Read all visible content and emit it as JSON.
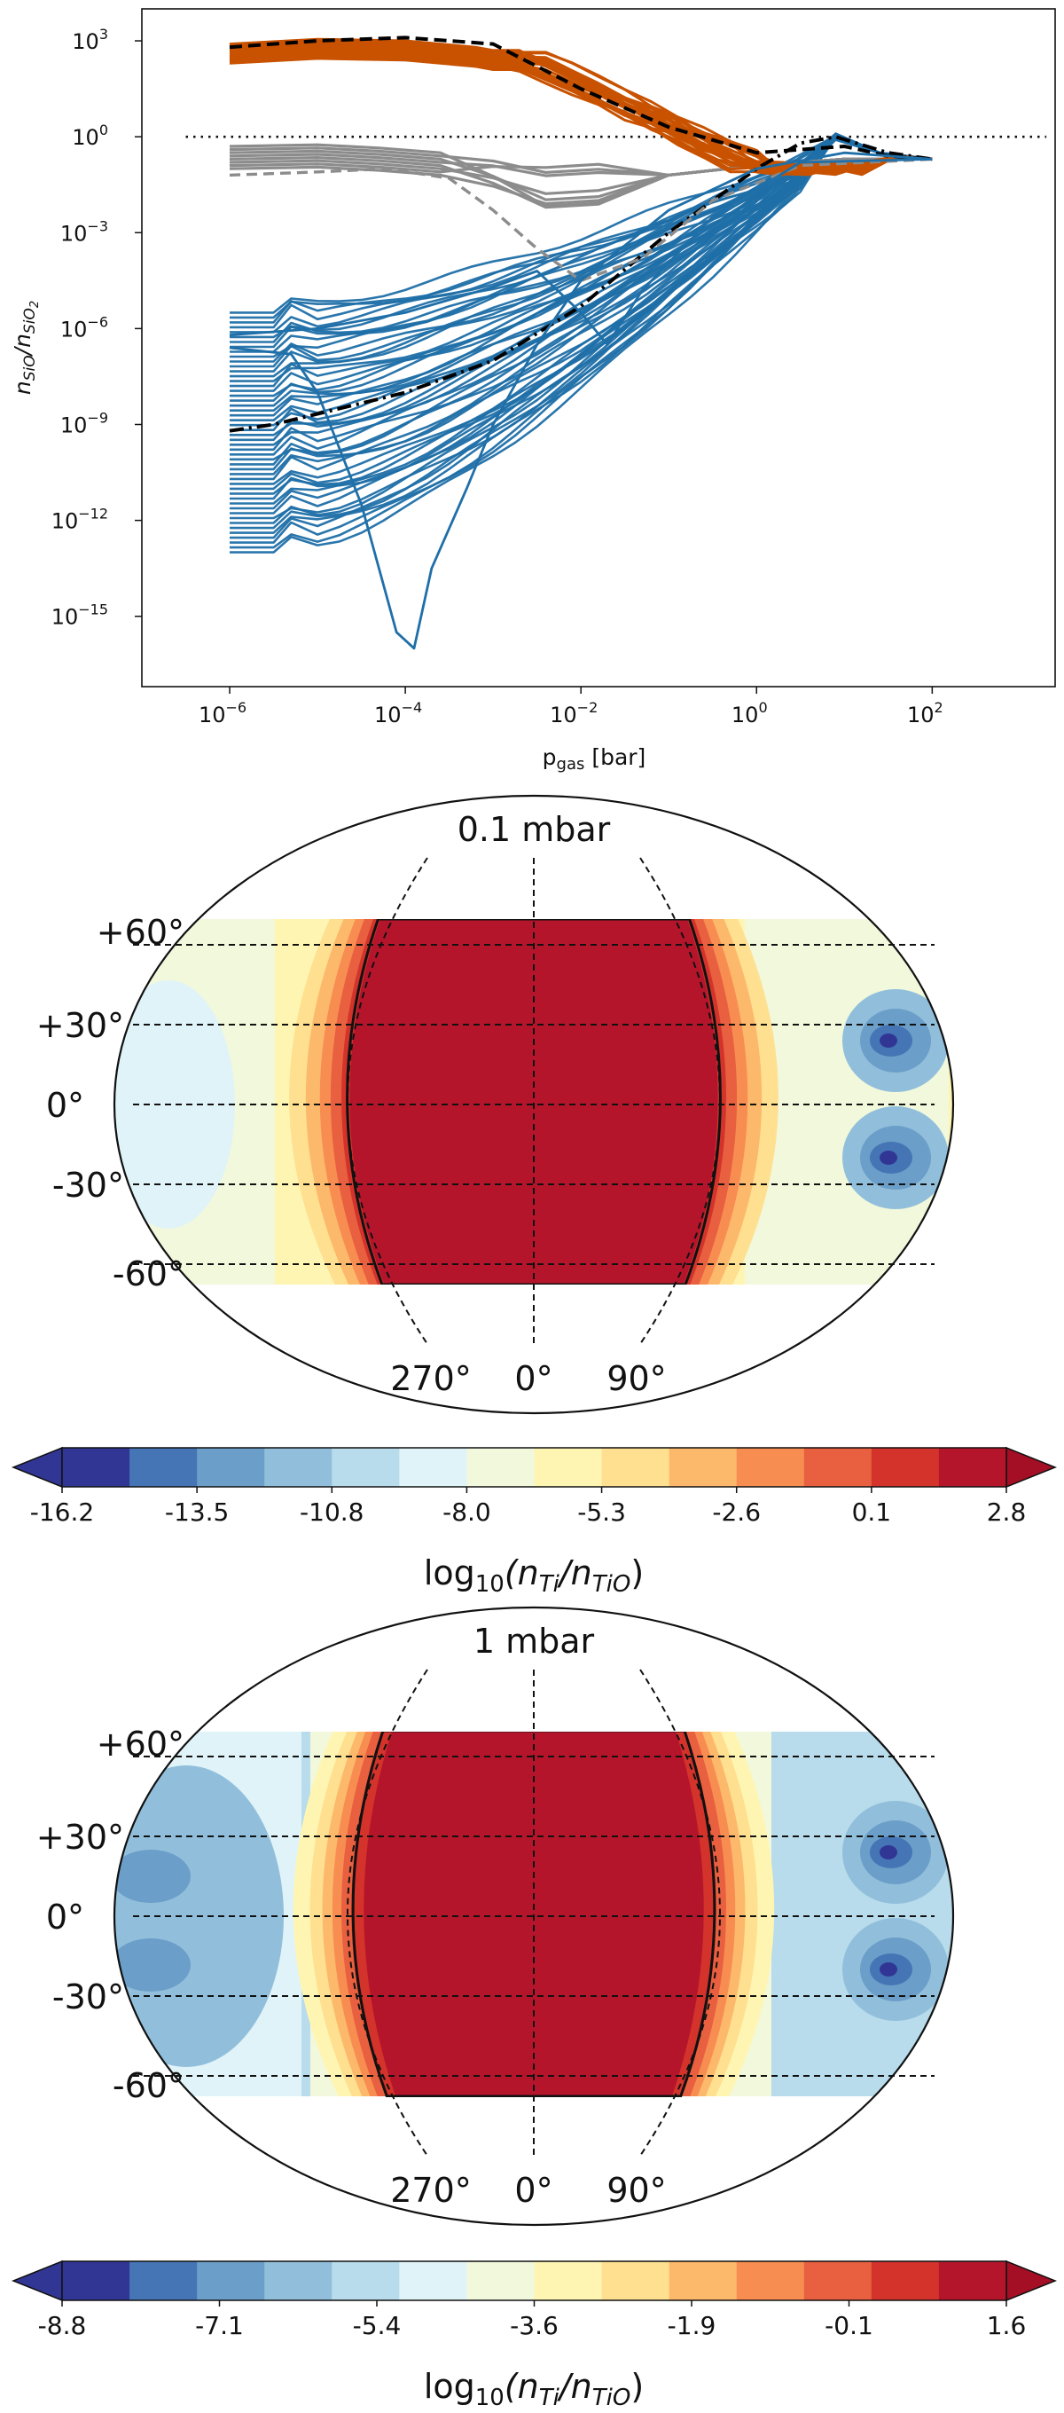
{
  "chart_data": [
    {
      "type": "line",
      "panel": "top",
      "xlabel_main": "p",
      "xlabel_sub": "gas",
      "xlabel_unit": " [bar]",
      "ylabel_n1": "n",
      "ylabel_s1": "SiO",
      "ylabel_slash": "/",
      "ylabel_n2": "n",
      "ylabel_s2": "SiO",
      "ylabel_s2b": "2",
      "xscale": "log",
      "yscale": "log",
      "xlim_exp": [
        -7,
        3.4
      ],
      "ylim_exp": [
        -17.2,
        4
      ],
      "x_ticks": [
        {
          "base": "10",
          "exp": "−6",
          "v": -6
        },
        {
          "base": "10",
          "exp": "−4",
          "v": -4
        },
        {
          "base": "10",
          "exp": "−2",
          "v": -2
        },
        {
          "base": "10",
          "exp": "0",
          "v": 0
        },
        {
          "base": "10",
          "exp": "2",
          "v": 2
        }
      ],
      "y_ticks": [
        {
          "base": "10",
          "exp": "3",
          "v": 3
        },
        {
          "base": "10",
          "exp": "0",
          "v": 0
        },
        {
          "base": "10",
          "exp": "−3",
          "v": -3
        },
        {
          "base": "10",
          "exp": "−6",
          "v": -6
        },
        {
          "base": "10",
          "exp": "−9",
          "v": -9
        },
        {
          "base": "10",
          "exp": "−12",
          "v": -12
        },
        {
          "base": "10",
          "exp": "−15",
          "v": -15
        }
      ],
      "reference_line": {
        "y_exp": 0,
        "style": "dotted"
      },
      "series_groups": [
        {
          "name": "orange",
          "color": "#c85200",
          "count": 22,
          "start_range": [
            2.3,
            2.9
          ],
          "end": -0.7
        },
        {
          "name": "gray",
          "color": "#8c8c8c",
          "count": 8,
          "start_range": [
            -1.0,
            -0.3
          ],
          "end": -0.7
        },
        {
          "name": "blue",
          "color": "#1f6fa8",
          "count": 50,
          "start_range": [
            -13.0,
            -5.5
          ],
          "end": -0.7
        }
      ],
      "highlighted_series": [
        {
          "name": "black-dashed",
          "color": "#000000",
          "points": [
            [
              -6,
              2.8
            ],
            [
              -5,
              3.0
            ],
            [
              -4,
              3.1
            ],
            [
              -3,
              2.9
            ],
            [
              -2,
              1.5
            ],
            [
              -1,
              0.3
            ],
            [
              0,
              -0.5
            ],
            [
              1,
              -0.3
            ],
            [
              1.5,
              -0.6
            ],
            [
              2,
              -0.7
            ]
          ]
        },
        {
          "name": "black-dashdot",
          "color": "#000000",
          "points": [
            [
              -6,
              -9.2
            ],
            [
              -5.5,
              -9.0
            ],
            [
              -4,
              -8.0
            ],
            [
              -3,
              -7.0
            ],
            [
              -2,
              -5.3
            ],
            [
              -1,
              -3.0
            ],
            [
              0,
              -1.0
            ],
            [
              0.5,
              -0.2
            ],
            [
              0.9,
              0.0
            ],
            [
              1.5,
              -0.5
            ],
            [
              2,
              -0.7
            ]
          ]
        },
        {
          "name": "gray-dashed",
          "color": "#8c8c8c",
          "points": [
            [
              -6,
              -1.2
            ],
            [
              -5,
              -1.1
            ],
            [
              -4.2,
              -1.0
            ],
            [
              -3.5,
              -1.3
            ],
            [
              -3,
              -2.3
            ],
            [
              -2.5,
              -3.5
            ],
            [
              -2,
              -4.5
            ],
            [
              -1.3,
              -3.8
            ],
            [
              -0.5,
              -2.0
            ],
            [
              0.5,
              -0.9
            ],
            [
              2,
              -0.7
            ]
          ]
        },
        {
          "name": "blue-deep-dip",
          "color": "#1f6fa8",
          "points": [
            [
              -6,
              -6.6
            ],
            [
              -5.3,
              -6.8
            ],
            [
              -5,
              -8.0
            ],
            [
              -4.5,
              -11.5
            ],
            [
              -4.1,
              -15.5
            ],
            [
              -3.9,
              -16.0
            ],
            [
              -3.7,
              -13.5
            ],
            [
              -3.3,
              -11.0
            ],
            [
              -3,
              -9.0
            ],
            [
              -2.5,
              -6.5
            ],
            [
              -2,
              -4.5
            ],
            [
              -1,
              -2.3
            ],
            [
              0,
              -1.0
            ],
            [
              1,
              -0.5
            ],
            [
              2,
              -0.7
            ]
          ]
        },
        {
          "name": "blue-midpressure-dip",
          "color": "#1f6fa8",
          "points": [
            [
              -6,
              -6.2
            ],
            [
              -5,
              -6.0
            ],
            [
              -4,
              -5.5
            ],
            [
              -3,
              -4.7
            ],
            [
              -2.5,
              -4.2
            ],
            [
              -2,
              -5.5
            ],
            [
              -1.7,
              -6.5
            ],
            [
              -1.3,
              -4.8
            ],
            [
              -0.5,
              -2.5
            ],
            [
              0.5,
              -0.8
            ],
            [
              2,
              -0.7
            ]
          ]
        }
      ]
    },
    {
      "type": "heatmap",
      "panel": "map-1",
      "projection": "Robinson-like",
      "title": "0.1 mbar",
      "lat_labels": [
        "+60°",
        "+30°",
        "0°",
        "-30°",
        "-60°"
      ],
      "lon_labels": [
        "270°",
        "0°",
        "90°"
      ],
      "colorbar_ticks": [
        "-16.2",
        "-13.5",
        "-10.8",
        "-8.0",
        "-5.3",
        "-2.6",
        "0.1",
        "2.8"
      ],
      "colorbar_label_pre": "log",
      "colorbar_label_sub": "10",
      "colorbar_label_open": "(n",
      "colorbar_label_s1": "Ti",
      "colorbar_label_mid": "/n",
      "colorbar_label_s2": "TiO",
      "colorbar_label_close": ")",
      "value_range": [
        -16.2,
        2.8
      ],
      "dayside_value": 2.8,
      "nightside_value": -5.0,
      "minimum_value": -15.0
    },
    {
      "type": "heatmap",
      "panel": "map-2",
      "projection": "Robinson-like",
      "title": "1 mbar",
      "lat_labels": [
        "+60°",
        "+30°",
        "0°",
        "-30°",
        "-60°"
      ],
      "lon_labels": [
        "270°",
        "0°",
        "90°"
      ],
      "colorbar_ticks": [
        "-8.8",
        "-7.1",
        "-5.4",
        "-3.6",
        "-1.9",
        "-0.1",
        "1.6"
      ],
      "colorbar_label_pre": "log",
      "colorbar_label_sub": "10",
      "colorbar_label_open": "(n",
      "colorbar_label_s1": "Ti",
      "colorbar_label_mid": "/n",
      "colorbar_label_s2": "TiO",
      "colorbar_label_close": ")",
      "value_range": [
        -10.5,
        2.5
      ],
      "dayside_value": 2.5,
      "nightside_value": -6.0,
      "minimum_value": -9.5
    }
  ],
  "colors": {
    "scale13": [
      "#313695",
      "#4575b4",
      "#6b9ec8",
      "#91bfdb",
      "#b8dceb",
      "#e0f3f8",
      "#f1f8dc",
      "#fff5b3",
      "#fee090",
      "#fdb96b",
      "#f88d52",
      "#e8603f",
      "#d3332b",
      "#b5152b"
    ],
    "axis": "#111111"
  }
}
